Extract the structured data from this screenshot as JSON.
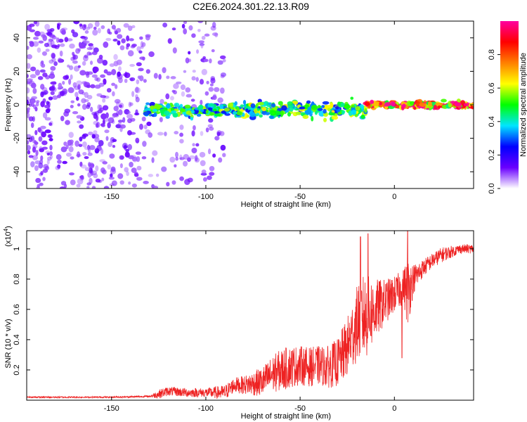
{
  "title": "C2E6.2024.301.22.13.R09",
  "chart_data": [
    {
      "type": "heatmap",
      "title": "C2E6.2024.301.22.13.R09",
      "xlabel": "Height of straight line (km)",
      "ylabel": "Frequency (Hz)",
      "xlim": [
        -195,
        42
      ],
      "ylim": [
        -50,
        50
      ],
      "x_ticks": [
        -150,
        -100,
        -50,
        0
      ],
      "y_ticks": [
        -40,
        -20,
        0,
        20,
        40
      ],
      "colorbar": {
        "label": "Normalized spectral amplitude",
        "range": [
          0,
          1
        ],
        "ticks": [
          0.0,
          0.2,
          0.4,
          0.6,
          0.8
        ],
        "colormap": [
          "#ffffff",
          "#6a00ff",
          "#0000ff",
          "#00e5ff",
          "#00ff00",
          "#ffff00",
          "#ff8000",
          "#ff0000",
          "#ff00a0"
        ]
      },
      "features": [
        {
          "segment": "noise",
          "x_range": [
            -195,
            -90
          ],
          "y_range": [
            -50,
            50
          ],
          "amplitude": 0.2
        },
        {
          "segment": "band",
          "x_range": [
            -132,
            -92
          ],
          "center_hz": -3,
          "width_hz": 6,
          "amplitude": 0.45
        },
        {
          "segment": "band",
          "x_range": [
            -92,
            -15
          ],
          "center_hz": -3,
          "width_hz": 8,
          "amplitude": 0.5
        },
        {
          "segment": "band",
          "x_range": [
            -15,
            42
          ],
          "center_hz": 0,
          "width_hz": 3,
          "amplitude": 0.85
        }
      ]
    },
    {
      "type": "line",
      "xlabel": "Height of straight line (km)",
      "ylabel": "SNR (10 * v/v)",
      "y_scale_label": "(x10",
      "y_scale_exp": "4",
      "y_scale_close": ")",
      "xlim": [
        -195,
        42
      ],
      "ylim": [
        0,
        1.12
      ],
      "x_ticks": [
        -150,
        -100,
        -50,
        0
      ],
      "y_ticks": [
        0.2,
        0.4,
        0.6,
        0.8,
        1.0
      ],
      "color": "#ee2222",
      "series": [
        {
          "x": [
            -195,
            -170,
            -150,
            -130,
            -125,
            -120,
            -110,
            -100,
            -90,
            -85,
            -80,
            -70,
            -65,
            -60,
            -55,
            -50,
            -45,
            -40,
            -35,
            -30,
            -25,
            -20,
            -18,
            -15,
            -10,
            -5,
            0,
            5,
            7,
            10,
            15,
            20,
            25,
            30,
            35,
            42
          ],
          "values": [
            0.02,
            0.02,
            0.02,
            0.025,
            0.04,
            0.06,
            0.05,
            0.05,
            0.05,
            0.1,
            0.1,
            0.12,
            0.17,
            0.2,
            0.22,
            0.23,
            0.22,
            0.23,
            0.22,
            0.25,
            0.35,
            0.5,
            0.55,
            0.55,
            0.6,
            0.65,
            0.7,
            0.75,
            0.72,
            0.8,
            0.87,
            0.92,
            0.96,
            0.98,
            1.0,
            1.0
          ],
          "noise": [
            0.005,
            0.005,
            0.005,
            0.006,
            0.03,
            0.03,
            0.03,
            0.03,
            0.05,
            0.05,
            0.06,
            0.1,
            0.12,
            0.14,
            0.14,
            0.13,
            0.13,
            0.13,
            0.14,
            0.16,
            0.2,
            0.25,
            0.28,
            0.28,
            0.2,
            0.15,
            0.12,
            0.12,
            0.25,
            0.1,
            0.06,
            0.05,
            0.05,
            0.04,
            0.03,
            0.03
          ],
          "peaks": [
            {
              "x": -18,
              "value": 1.08
            },
            {
              "x": -14,
              "value": 1.1
            },
            {
              "x": 7,
              "value": 1.12
            },
            {
              "x": 4,
              "value": 0.28
            }
          ]
        }
      ]
    }
  ]
}
